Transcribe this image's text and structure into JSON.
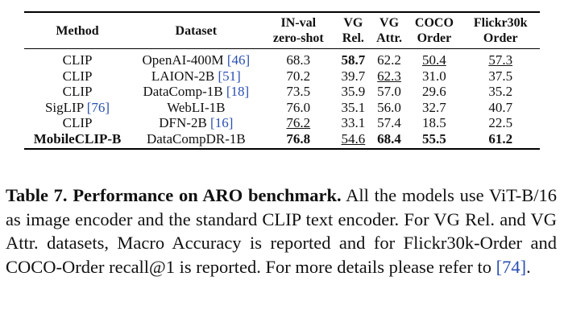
{
  "table": {
    "header": [
      "Method",
      "Dataset",
      [
        "IN-val",
        "zero-shot"
      ],
      [
        "VG",
        "Rel."
      ],
      [
        "VG",
        "Attr."
      ],
      [
        "COCO",
        "Order"
      ],
      [
        "Flickr30k",
        "Order"
      ]
    ],
    "rows": [
      [
        {
          "text": "CLIP"
        },
        {
          "text": "OpenAI-400M",
          "cite": "[46]"
        },
        "68.3",
        "58.7",
        "62.2",
        "50.4",
        "57.3"
      ],
      [
        {
          "text": "CLIP"
        },
        {
          "text": "LAION-2B",
          "cite": "[51]"
        },
        "70.2",
        "39.7",
        "62.3",
        "31.0",
        "37.5"
      ],
      [
        {
          "text": "CLIP"
        },
        {
          "text": "DataComp-1B",
          "cite": "[18]"
        },
        "73.5",
        "35.9",
        "57.0",
        "29.6",
        "35.2"
      ],
      [
        {
          "text": "SigLIP",
          "cite": "[76]"
        },
        {
          "text": "WebLI-1B"
        },
        "76.0",
        "35.1",
        "56.0",
        "32.7",
        "40.7"
      ],
      [
        {
          "text": "CLIP"
        },
        {
          "text": "DFN-2B",
          "cite": "[16]"
        },
        "76.2",
        "33.1",
        "57.4",
        "18.5",
        "22.5"
      ],
      [
        {
          "text": "MobileCLIP-B"
        },
        {
          "text": "DataCompDR-1B"
        },
        "76.8",
        "54.6",
        "68.4",
        "55.5",
        "61.2"
      ]
    ]
  },
  "caption": {
    "label": "Table 7.",
    "title": "Performance on ARO benchmark.",
    "body": "All the models use ViT-B/16 as image encoder and the standard CLIP text encoder. For VG Rel. and VG Attr. datasets, Macro Accuracy is reported and for Flickr30k-Order and COCO-Order recall@1 is reported. For more details please refer to",
    "cite": "[74]",
    "end": "."
  }
}
